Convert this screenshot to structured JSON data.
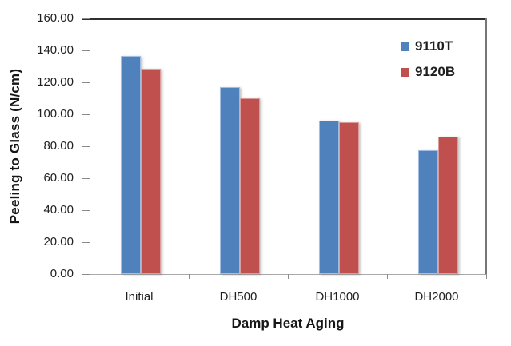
{
  "chart_data": {
    "type": "bar",
    "title": "",
    "xlabel": "Damp Heat Aging",
    "ylabel": "Peeling to  Glass (N/cm)",
    "categories": [
      "Initial",
      "DH500",
      "DH1000",
      "DH2000"
    ],
    "series": [
      {
        "name": "9110T",
        "color": "#4F81BD",
        "border_color": "#A3BEE0",
        "values": [
          136.5,
          117.0,
          96.0,
          77.5
        ]
      },
      {
        "name": "9120B",
        "color": "#C0504D",
        "border_color": "#DA9E9C",
        "values": [
          128.5,
          110.0,
          95.0,
          86.0
        ]
      }
    ],
    "ylim": [
      0,
      160
    ],
    "ytick_labels": [
      "160.00",
      "140.00",
      "120.00",
      "100.00",
      "80.00",
      "60.00",
      "40.00",
      "20.00",
      "0.00"
    ],
    "grid": false,
    "legend_position": "top-right"
  },
  "colors": {
    "text": "#1f1f1f",
    "plot_border": "#a6a6a6",
    "tick": "#8c8c8c",
    "background": "#ffffff"
  }
}
